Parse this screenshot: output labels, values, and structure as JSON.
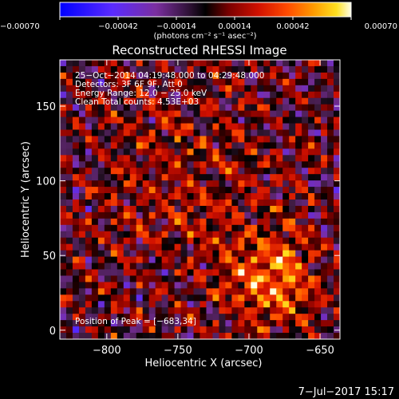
{
  "chart_data": {
    "type": "heatmap",
    "title": "Reconstructed RHESSI Image",
    "xlabel": "Heliocentric X (arcsec)",
    "ylabel": "Heliocentric Y (arcsec)",
    "x_range": [
      -833,
      -636
    ],
    "y_range": [
      -6,
      181
    ],
    "x_ticks": [
      {
        "value": -800,
        "label": "−800"
      },
      {
        "value": -750,
        "label": "−750"
      },
      {
        "value": -700,
        "label": "−700"
      },
      {
        "value": -650,
        "label": "−650"
      }
    ],
    "y_ticks": [
      {
        "value": 0,
        "label": "0"
      },
      {
        "value": 50,
        "label": "50"
      },
      {
        "value": 100,
        "label": "100"
      },
      {
        "value": 150,
        "label": "150"
      }
    ],
    "colorbar": {
      "min": -0.0007,
      "max": 0.0007,
      "ticks": [
        {
          "value": -0.0007,
          "label": "−0.00070"
        },
        {
          "value": -0.00042,
          "label": "−0.00042"
        },
        {
          "value": -0.00014,
          "label": "−0.00014"
        },
        {
          "value": 0.00014,
          "label": "0.00014"
        },
        {
          "value": 0.00042,
          "label": "0.00042"
        },
        {
          "value": 0.0007,
          "label": "0.00070"
        }
      ],
      "units_label": "(photons cm⁻² s⁻¹ asec⁻²)"
    },
    "annotations": [
      "25−Oct−2014 04:19:48.000 to 04:29:48.000",
      "Detectors: 3F 6F 9F, Att 0",
      "Energy Range: 12.0 − 25.0 keV",
      "Clean      Total counts: 4.53E+03"
    ],
    "peak_label": "Position of Peak = [−683,34]",
    "peak_position": [
      -683,
      34
    ]
  },
  "footer": {
    "date": "7−Jul−2017 15:17"
  },
  "colors": {
    "background": "#000000",
    "foreground": "#ffffff",
    "colormap": [
      "#0000ff",
      "#5a2bff",
      "#7b2fa0",
      "#3a1a3a",
      "#000000",
      "#7a0000",
      "#d01000",
      "#ff4a00",
      "#ff9a00",
      "#ffe020",
      "#ffffe8"
    ]
  }
}
